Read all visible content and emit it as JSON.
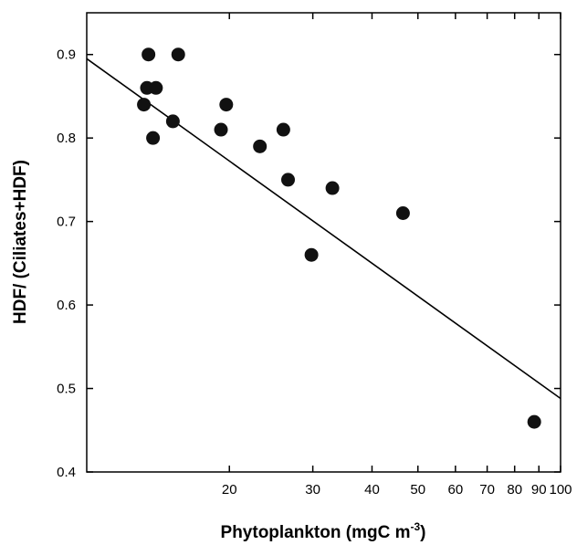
{
  "chart_data": {
    "type": "scatter",
    "title": "",
    "xlabel": "Phytoplankton (mgC m",
    "xlabel_sup": "-3",
    "xlabel_suffix": ")",
    "ylabel": "HDF/ (Ciliates+HDF)",
    "x_scale": "log",
    "xlim": [
      10,
      100
    ],
    "ylim": [
      0.4,
      0.95
    ],
    "x_ticks": [
      20,
      30,
      40,
      50,
      60,
      70,
      80,
      90,
      100
    ],
    "x_tick_labels": [
      "20",
      "30",
      "40",
      "50",
      "60",
      "70",
      "80",
      "90",
      "100"
    ],
    "y_ticks": [
      0.4,
      0.5,
      0.6,
      0.7,
      0.8,
      0.9
    ],
    "y_tick_labels": [
      "0.4",
      "0.5",
      "0.6",
      "0.7",
      "0.8",
      "0.9"
    ],
    "grid": false,
    "points": [
      {
        "x": 13.2,
        "y": 0.84
      },
      {
        "x": 13.4,
        "y": 0.86
      },
      {
        "x": 13.5,
        "y": 0.9
      },
      {
        "x": 13.8,
        "y": 0.8
      },
      {
        "x": 14.0,
        "y": 0.86
      },
      {
        "x": 15.2,
        "y": 0.82
      },
      {
        "x": 15.6,
        "y": 0.9
      },
      {
        "x": 19.2,
        "y": 0.81
      },
      {
        "x": 19.7,
        "y": 0.84
      },
      {
        "x": 23.2,
        "y": 0.79
      },
      {
        "x": 26.0,
        "y": 0.81
      },
      {
        "x": 26.6,
        "y": 0.75
      },
      {
        "x": 29.8,
        "y": 0.66
      },
      {
        "x": 33.0,
        "y": 0.74
      },
      {
        "x": 46.5,
        "y": 0.71
      },
      {
        "x": 88.0,
        "y": 0.46
      }
    ],
    "trendline": {
      "x": [
        10,
        100
      ],
      "y": [
        0.895,
        0.488
      ]
    },
    "marker_color": "#111111",
    "line_color": "#000000"
  }
}
